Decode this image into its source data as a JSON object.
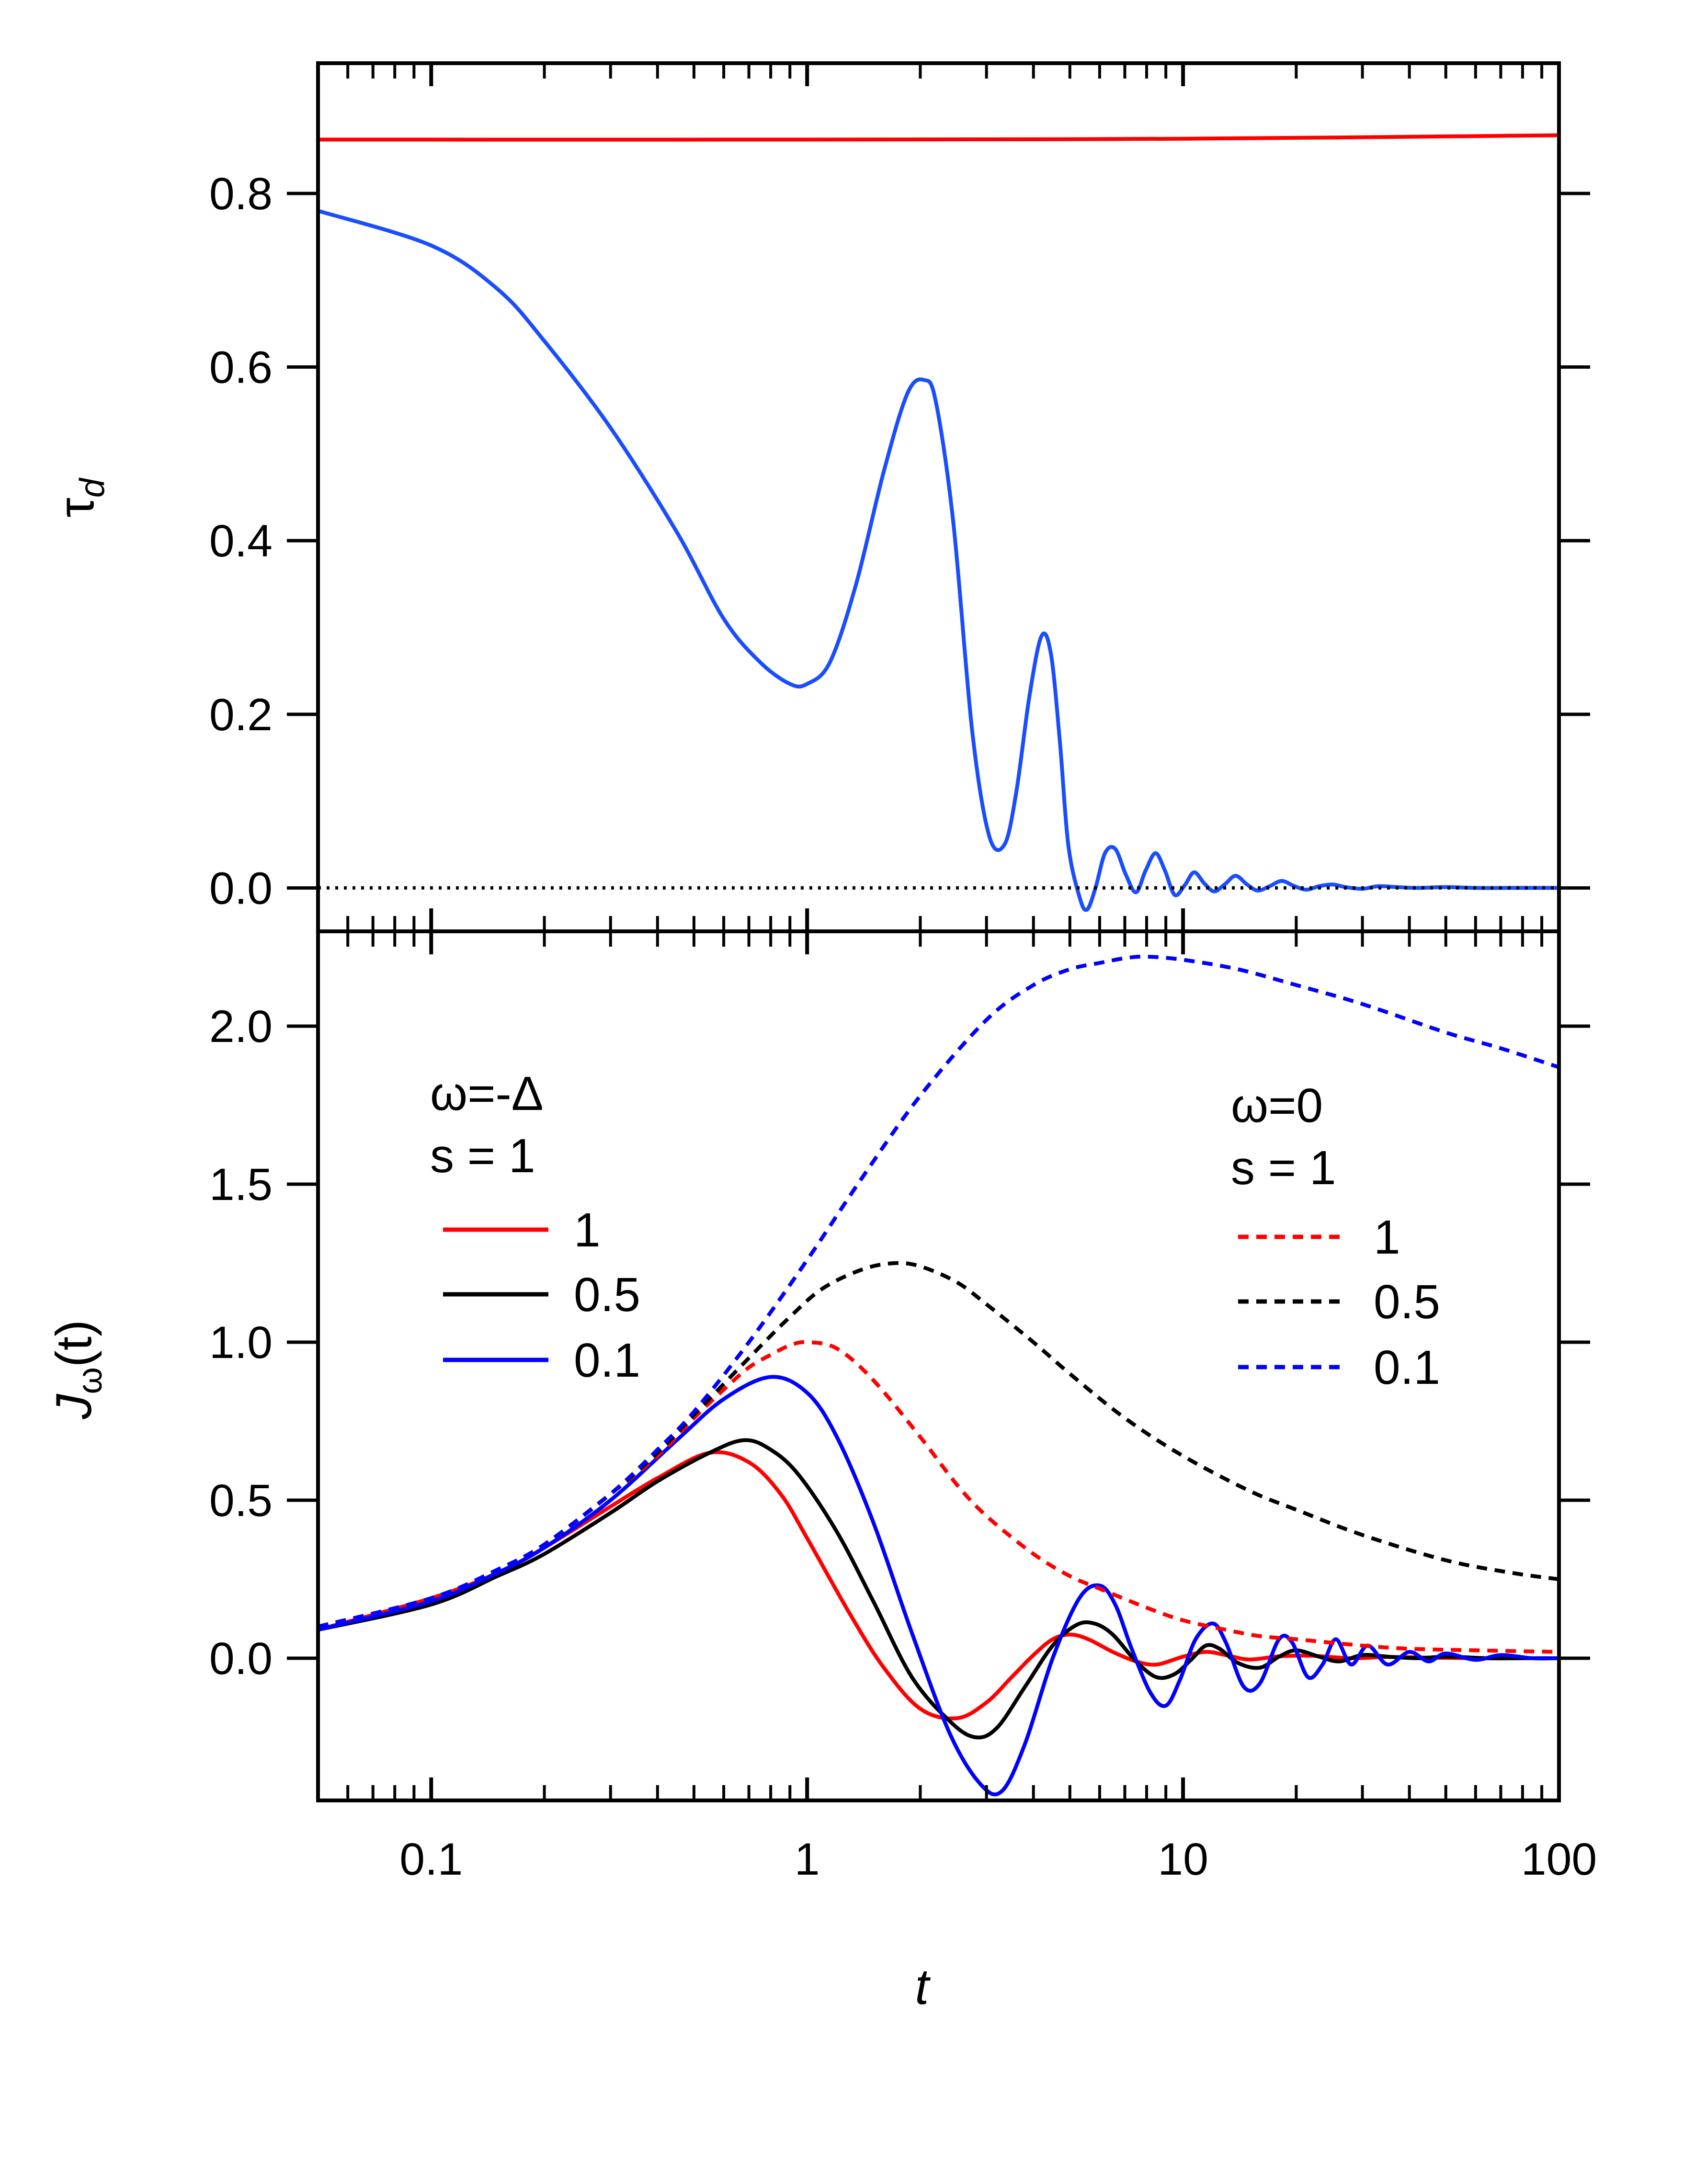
{
  "figure": {
    "x_axis": {
      "label": "t",
      "scale": "log",
      "range": [
        0.05,
        100
      ],
      "tick_labels": [
        {
          "value": 0.1,
          "label": "0.1"
        },
        {
          "value": 1,
          "label": "1"
        },
        {
          "value": 10,
          "label": "10"
        },
        {
          "value": 100,
          "label": "100"
        }
      ]
    },
    "colors": {
      "red": "#ff0000",
      "black": "#000000",
      "blue": "#0000ff",
      "blue_top": "#1a4dff"
    }
  },
  "chart_data": [
    {
      "type": "line",
      "panel": "top",
      "ylabel": "τ",
      "ylabel_subscript": "d",
      "ylim": [
        -0.05,
        0.95
      ],
      "yticks": [
        {
          "value": 0.0,
          "label": "0.0"
        },
        {
          "value": 0.2,
          "label": "0.2"
        },
        {
          "value": 0.4,
          "label": "0.4"
        },
        {
          "value": 0.6,
          "label": "0.6"
        },
        {
          "value": 0.8,
          "label": "0.8"
        }
      ],
      "series": [
        {
          "name": "red",
          "color": "#ff0000",
          "style": "solid",
          "x": [
            0.05,
            1,
            10,
            100
          ],
          "y": [
            0.862,
            0.862,
            0.863,
            0.867
          ]
        },
        {
          "name": "blue",
          "color": "#1a4dff",
          "style": "solid",
          "x": [
            0.05,
            0.1,
            0.15,
            0.2,
            0.3,
            0.45,
            0.6,
            0.75,
            0.9,
            1.0,
            1.15,
            1.35,
            1.6,
            1.85,
            2.05,
            2.2,
            2.45,
            2.75,
            3.05,
            3.35,
            3.6,
            3.9,
            4.2,
            4.45,
            4.7,
            4.95,
            5.3,
            5.55,
            5.85,
            6.2,
            6.6,
            7.05,
            7.5,
            7.95,
            8.45,
            8.95,
            9.5,
            10.1,
            10.7,
            11.4,
            12.1,
            12.9,
            13.8,
            14.8,
            15.8,
            17.0,
            18.3,
            19.8,
            21.3,
            23.0,
            25.0,
            27.0,
            30.0,
            33.0,
            37.0,
            42.0,
            50.0,
            60.0,
            75.0,
            100.0
          ],
          "y": [
            0.78,
            0.74,
            0.69,
            0.63,
            0.53,
            0.41,
            0.31,
            0.26,
            0.235,
            0.235,
            0.26,
            0.35,
            0.48,
            0.57,
            0.585,
            0.56,
            0.42,
            0.18,
            0.06,
            0.05,
            0.11,
            0.22,
            0.29,
            0.27,
            0.17,
            0.05,
            -0.01,
            -0.025,
            0.0,
            0.04,
            0.045,
            0.015,
            -0.005,
            0.02,
            0.04,
            0.02,
            -0.008,
            0.003,
            0.018,
            0.005,
            -0.004,
            0.004,
            0.014,
            0.004,
            -0.003,
            0.002,
            0.008,
            0.002,
            -0.002,
            0.002,
            0.004,
            0.001,
            -0.001,
            0.002,
            0.001,
            0.0,
            0.001,
            0.0,
            0.0,
            0.0
          ]
        },
        {
          "name": "zero",
          "color": "#000000",
          "style": "dotted",
          "x": [
            0.05,
            100
          ],
          "y": [
            0.0,
            0.0
          ]
        }
      ]
    },
    {
      "type": "line",
      "panel": "bottom",
      "ylabel": "J",
      "ylabel_subscript": "ω",
      "ylabel_suffix": "(t)",
      "ylim": [
        -0.45,
        2.3
      ],
      "yticks": [
        {
          "value": 0.0,
          "label": "0.0"
        },
        {
          "value": 0.5,
          "label": "0.5"
        },
        {
          "value": 1.0,
          "label": "1.0"
        },
        {
          "value": 1.5,
          "label": "1.5"
        },
        {
          "value": 2.0,
          "label": "2.0"
        }
      ],
      "legends": [
        {
          "title_line1": "ω=-Δ",
          "title_line2": "s = 1",
          "style": "solid",
          "entries": [
            {
              "label": "1",
              "color": "#ff0000"
            },
            {
              "label": "0.5",
              "color": "#000000"
            },
            {
              "label": "0.1",
              "color": "#0000ff"
            }
          ]
        },
        {
          "title_line1": "ω=0",
          "title_line2": "s = 1",
          "style": "dashed",
          "entries": [
            {
              "label": "1",
              "color": "#ff0000"
            },
            {
              "label": "0.5",
              "color": "#000000"
            },
            {
              "label": "0.1",
              "color": "#0000ff"
            }
          ]
        }
      ],
      "series": [
        {
          "name": "omega=-Delta, 1",
          "color": "#ff0000",
          "style": "solid",
          "x": [
            0.05,
            0.1,
            0.15,
            0.2,
            0.3,
            0.4,
            0.55,
            0.7,
            0.85,
            1.0,
            1.3,
            1.6,
            2.0,
            2.5,
            3.0,
            3.5,
            4.0,
            4.5,
            5.0,
            5.6,
            6.5,
            7.5,
            8.5,
            10.0,
            11.5,
            13.0,
            15.0,
            18.0,
            22.0,
            28.0,
            35.0,
            45.0,
            60.0,
            80.0,
            100.0
          ],
          "y": [
            0.09,
            0.19,
            0.27,
            0.35,
            0.48,
            0.57,
            0.65,
            0.62,
            0.52,
            0.38,
            0.14,
            -0.03,
            -0.16,
            -0.19,
            -0.14,
            -0.06,
            0.01,
            0.06,
            0.075,
            0.06,
            0.02,
            -0.01,
            -0.02,
            0.005,
            0.02,
            0.01,
            -0.004,
            0.006,
            0.008,
            0.0,
            0.004,
            0.002,
            0.0,
            0.0,
            0.0
          ]
        },
        {
          "name": "omega=-Delta, 0.5",
          "color": "#000000",
          "style": "solid",
          "x": [
            0.05,
            0.1,
            0.15,
            0.2,
            0.3,
            0.4,
            0.55,
            0.68,
            0.8,
            0.95,
            1.2,
            1.5,
            1.9,
            2.4,
            2.8,
            3.2,
            3.8,
            4.5,
            5.2,
            5.8,
            6.5,
            7.5,
            8.5,
            9.5,
            10.5,
            11.5,
            12.5,
            14.0,
            16.0,
            18.0,
            20.0,
            23.0,
            26.0,
            30.0,
            35.0,
            42.0,
            50.0,
            65.0,
            80.0,
            100.0
          ],
          "y": [
            0.09,
            0.17,
            0.26,
            0.33,
            0.46,
            0.56,
            0.65,
            0.69,
            0.66,
            0.58,
            0.4,
            0.18,
            -0.06,
            -0.2,
            -0.25,
            -0.22,
            -0.09,
            0.04,
            0.105,
            0.11,
            0.075,
            -0.01,
            -0.06,
            -0.05,
            -0.005,
            0.04,
            0.03,
            -0.015,
            -0.03,
            0.005,
            0.025,
            0.005,
            -0.01,
            0.01,
            0.005,
            0.0,
            0.005,
            0.0,
            0.0,
            0.0
          ]
        },
        {
          "name": "omega=-Delta, 0.1",
          "color": "#0000ff",
          "style": "solid",
          "x": [
            0.05,
            0.1,
            0.15,
            0.2,
            0.3,
            0.45,
            0.6,
            0.8,
            1.0,
            1.2,
            1.5,
            1.9,
            2.4,
            2.9,
            3.3,
            3.8,
            4.5,
            5.3,
            6.0,
            6.6,
            7.3,
            8.2,
            9.0,
            9.8,
            10.8,
            12.0,
            13.0,
            14.5,
            16.0,
            18.0,
            19.5,
            21.5,
            23.5,
            25.5,
            28.0,
            31.0,
            35.0,
            40.0,
            45.0,
            50.0,
            60.0,
            70.0,
            85.0,
            100.0
          ],
          "y": [
            0.09,
            0.18,
            0.27,
            0.35,
            0.5,
            0.69,
            0.82,
            0.89,
            0.84,
            0.7,
            0.43,
            0.08,
            -0.24,
            -0.4,
            -0.42,
            -0.27,
            0.0,
            0.19,
            0.23,
            0.17,
            0.03,
            -0.11,
            -0.15,
            -0.07,
            0.06,
            0.11,
            0.05,
            -0.09,
            -0.08,
            0.06,
            0.05,
            -0.06,
            -0.02,
            0.06,
            -0.02,
            0.04,
            -0.02,
            0.02,
            -0.01,
            0.015,
            -0.005,
            0.01,
            0.0,
            0.0
          ]
        },
        {
          "name": "omega=0, 1",
          "color": "#ff0000",
          "style": "dashed",
          "x": [
            0.05,
            0.1,
            0.15,
            0.2,
            0.3,
            0.4,
            0.5,
            0.6,
            0.7,
            0.8,
            0.9,
            1.0,
            1.2,
            1.5,
            2.0,
            2.5,
            3.0,
            4.0,
            5.0,
            6.0,
            8.0,
            10.0,
            13.0,
            16.0,
            20.0,
            30.0,
            40.0,
            60.0,
            100.0
          ],
          "y": [
            0.1,
            0.19,
            0.28,
            0.36,
            0.52,
            0.64,
            0.76,
            0.85,
            0.92,
            0.96,
            0.99,
            1.0,
            0.98,
            0.88,
            0.7,
            0.55,
            0.45,
            0.33,
            0.26,
            0.22,
            0.16,
            0.12,
            0.09,
            0.07,
            0.06,
            0.04,
            0.03,
            0.025,
            0.02
          ]
        },
        {
          "name": "omega=0, 0.5",
          "color": "#000000",
          "style": "dashed",
          "x": [
            0.05,
            0.1,
            0.15,
            0.2,
            0.3,
            0.4,
            0.5,
            0.7,
            0.9,
            1.1,
            1.4,
            1.7,
            2.0,
            2.5,
            3.0,
            4.0,
            5.0,
            7.0,
            10.0,
            15.0,
            20.0,
            30.0,
            50.0,
            75.0,
            100.0
          ],
          "y": [
            0.1,
            0.19,
            0.28,
            0.36,
            0.52,
            0.65,
            0.77,
            0.95,
            1.08,
            1.17,
            1.23,
            1.25,
            1.24,
            1.19,
            1.12,
            1.0,
            0.9,
            0.76,
            0.64,
            0.53,
            0.47,
            0.39,
            0.31,
            0.27,
            0.25
          ]
        },
        {
          "name": "omega=0, 0.1",
          "color": "#0000ff",
          "style": "dashed",
          "x": [
            0.05,
            0.1,
            0.15,
            0.2,
            0.3,
            0.4,
            0.5,
            0.7,
            1.0,
            1.4,
            2.0,
            3.0,
            4.0,
            5.0,
            6.0,
            7.0,
            8.0,
            10.0,
            14.0,
            20.0,
            30.0,
            50.0,
            70.0,
            100.0
          ],
          "y": [
            0.1,
            0.19,
            0.28,
            0.36,
            0.52,
            0.66,
            0.78,
            1.0,
            1.26,
            1.52,
            1.78,
            2.02,
            2.13,
            2.18,
            2.2,
            2.215,
            2.22,
            2.21,
            2.18,
            2.13,
            2.07,
            1.98,
            1.93,
            1.87
          ]
        }
      ]
    }
  ]
}
